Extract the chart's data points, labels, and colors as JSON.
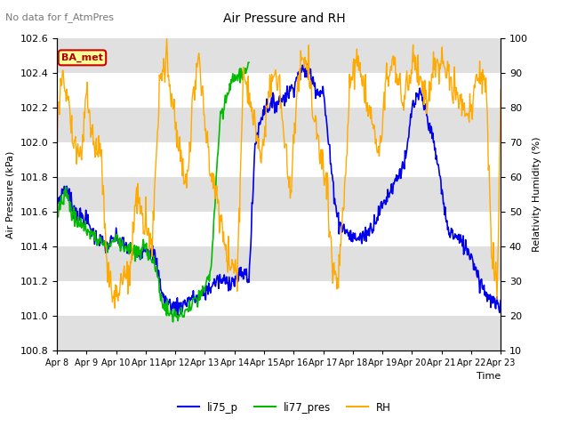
{
  "title": "Air Pressure and RH",
  "subtitle": "No data for f_AtmPres",
  "xlabel": "Time",
  "ylabel_left": "Air Pressure (kPa)",
  "ylabel_right": "Relativity Humidity (%)",
  "ylim_left": [
    100.8,
    102.6
  ],
  "ylim_right": [
    10,
    100
  ],
  "yticks_left": [
    100.8,
    101.0,
    101.2,
    101.4,
    101.6,
    101.8,
    102.0,
    102.2,
    102.4,
    102.6
  ],
  "yticks_right": [
    10,
    20,
    30,
    40,
    50,
    60,
    70,
    80,
    90,
    100
  ],
  "xtick_labels": [
    "Apr 8",
    "Apr 9",
    "Apr 10",
    "Apr 11",
    "Apr 12",
    "Apr 13",
    "Apr 14",
    "Apr 15",
    "Apr 16",
    "Apr 17",
    "Apr 18",
    "Apr 19",
    "Apr 20",
    "Apr 21",
    "Apr 22",
    "Apr 23"
  ],
  "color_li75": "#0000ee",
  "color_li77": "#00bb00",
  "color_rh": "#ffaa00",
  "legend_labels": [
    "li75_p",
    "li77_pres",
    "RH"
  ],
  "box_label": "BA_met",
  "box_color": "#ffff99",
  "box_edge_color": "#cc0000",
  "bg_band_color": "#e0e0e0",
  "n_days": 15
}
